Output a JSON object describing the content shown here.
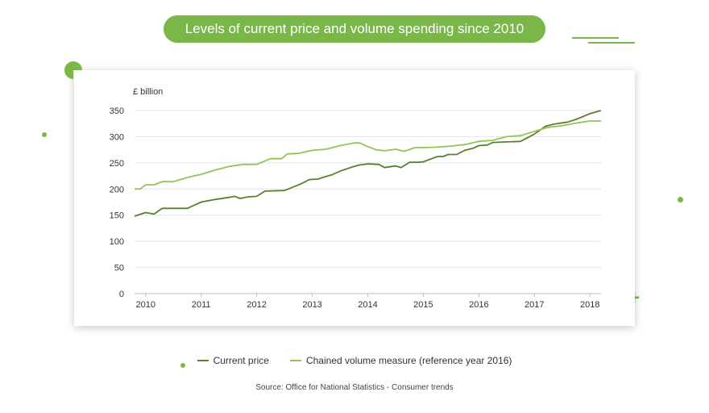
{
  "colors": {
    "accent": "#7ab648",
    "current_price": "#5a7f30",
    "chained_volume": "#8fc653",
    "grid": "#e4e4e4",
    "text": "#333333"
  },
  "header": {
    "title": "Levels of current price and volume spending since 2010"
  },
  "source": "Source: Office for National Statistics - Consumer trends",
  "chart_data": {
    "type": "line",
    "ylabel": "£ billion",
    "ylim": [
      0,
      350
    ],
    "yticks": [
      "0",
      "50",
      "100",
      "150",
      "200",
      "250",
      "300",
      "350"
    ],
    "ytick_values": [
      0,
      50,
      100,
      150,
      200,
      250,
      300,
      350
    ],
    "xlim": [
      2009.8,
      2018.2
    ],
    "xticks": [
      "2010",
      "2011",
      "2012",
      "2013",
      "2014",
      "2015",
      "2016",
      "2017",
      "2018"
    ],
    "xtick_values": [
      2010,
      2011,
      2012,
      2013,
      2014,
      2015,
      2016,
      2017,
      2018
    ],
    "grid": true,
    "legend": "bottom",
    "series": [
      {
        "name": "Current price",
        "color": "#5a7f30",
        "x": [
          2009.8,
          2010.0,
          2010.15,
          2010.3,
          2010.5,
          2010.75,
          2011.0,
          2011.25,
          2011.5,
          2011.6,
          2011.7,
          2011.85,
          2012.0,
          2012.15,
          2012.5,
          2012.8,
          2012.95,
          2013.1,
          2013.25,
          2013.35,
          2013.5,
          2013.75,
          2013.85,
          2014.0,
          2014.2,
          2014.3,
          2014.5,
          2014.6,
          2014.75,
          2014.9,
          2015.0,
          2015.15,
          2015.25,
          2015.35,
          2015.45,
          2015.6,
          2015.75,
          2015.9,
          2016.0,
          2016.15,
          2016.25,
          2016.5,
          2016.75,
          2017.0,
          2017.2,
          2017.35,
          2017.6,
          2017.75,
          2018.0,
          2018.2
        ],
        "values": [
          148,
          155,
          152,
          163,
          163,
          163,
          175,
          180,
          184,
          186,
          182,
          185,
          186,
          196,
          197,
          210,
          218,
          219,
          224,
          227,
          234,
          243,
          246,
          248,
          247,
          241,
          244,
          241,
          251,
          251,
          252,
          258,
          262,
          262,
          266,
          266,
          274,
          278,
          283,
          284,
          289,
          290,
          291,
          305,
          320,
          324,
          328,
          333,
          344,
          350
        ]
      },
      {
        "name": "Chained volume measure (reference year 2016)",
        "color": "#8fc653",
        "x": [
          2009.8,
          2009.9,
          2010.0,
          2010.15,
          2010.3,
          2010.5,
          2010.75,
          2011.0,
          2011.25,
          2011.5,
          2011.75,
          2012.0,
          2012.25,
          2012.45,
          2012.55,
          2012.75,
          2013.0,
          2013.25,
          2013.5,
          2013.75,
          2013.85,
          2014.0,
          2014.15,
          2014.3,
          2014.5,
          2014.65,
          2014.85,
          2015.0,
          2015.25,
          2015.5,
          2015.75,
          2016.0,
          2016.25,
          2016.5,
          2016.75,
          2017.0,
          2017.25,
          2017.5,
          2017.75,
          2018.0,
          2018.2
        ],
        "values": [
          200,
          200,
          208,
          208,
          214,
          214,
          222,
          228,
          236,
          243,
          247,
          247,
          258,
          258,
          267,
          268,
          274,
          276,
          283,
          288,
          288,
          281,
          275,
          273,
          276,
          272,
          279,
          279,
          280,
          282,
          285,
          291,
          293,
          300,
          302,
          310,
          318,
          321,
          326,
          330,
          330
        ]
      }
    ]
  }
}
